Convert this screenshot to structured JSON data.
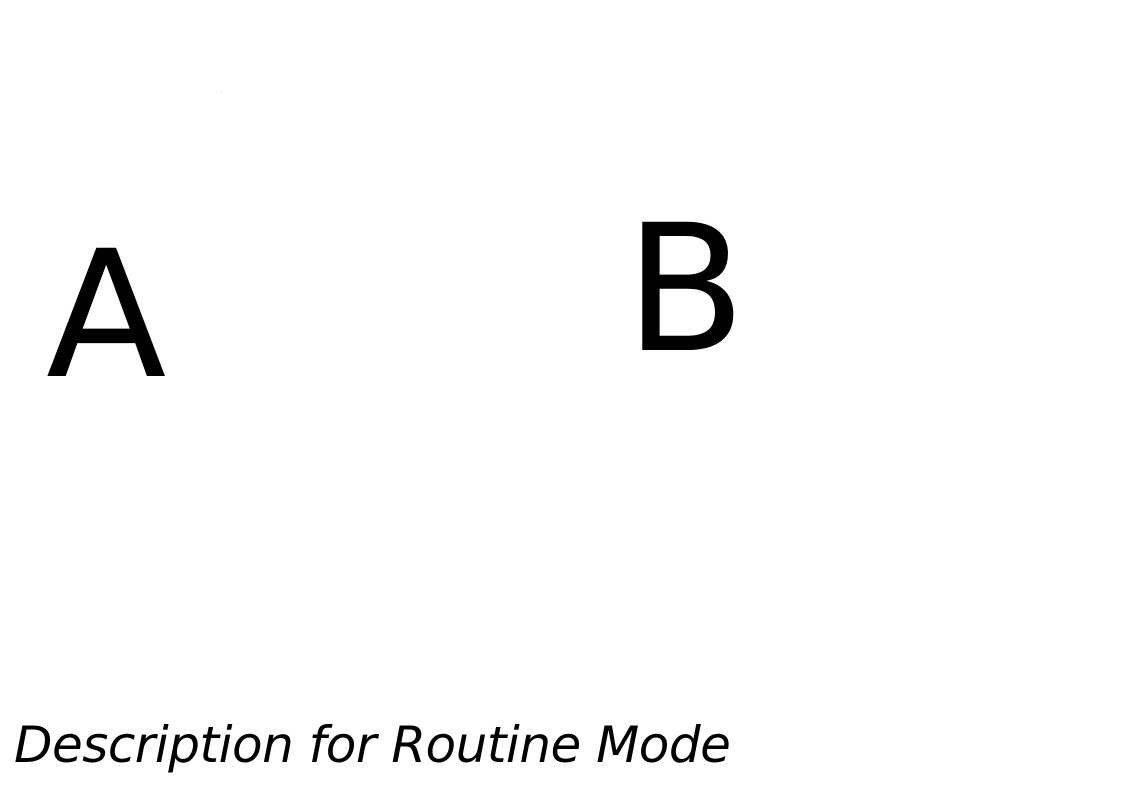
{
  "labels": {
    "a": "A",
    "b": "B"
  },
  "description": "Description for Routine Mode",
  "colors": {
    "background": "#ffffff",
    "text": "#000000"
  }
}
